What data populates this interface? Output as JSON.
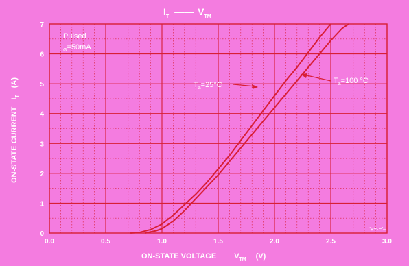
{
  "chart_data": {
    "type": "line",
    "title": {
      "main": "I",
      "main_sub": "T",
      "dash": "——",
      "second": "V",
      "second_sub": "TM"
    },
    "xlabel": {
      "text": "ON-STATE VOLTAGE",
      "symbol": "V",
      "symbol_sub": "TM",
      "unit": "(V)"
    },
    "ylabel": {
      "text": "ON-STATE CURRENT",
      "symbol": "I",
      "symbol_sub": "T",
      "unit": "(A)"
    },
    "xlim": [
      0,
      3.0
    ],
    "ylim": [
      0,
      7
    ],
    "x_tick_labels": [
      "0.0",
      "0.5",
      "1.0",
      "1.5",
      "2.0",
      "2.5",
      "3.0"
    ],
    "y_tick_labels": [
      "0",
      "1",
      "2",
      "3",
      "4",
      "5",
      "6",
      "7"
    ],
    "grid": true,
    "note": {
      "line1": "Pulsed",
      "line2_pre": "I",
      "line2_sub": "G",
      "line2_post": "=50mA"
    },
    "series": [
      {
        "name": "T_a=25°C",
        "label_pre": "T",
        "label_sub": "a",
        "label_post": "=25°C",
        "x": [
          0.85,
          0.95,
          1.0,
          1.1,
          1.2,
          1.3,
          1.4,
          1.5,
          1.6,
          1.7,
          1.8,
          1.9,
          2.0,
          2.1,
          2.2,
          2.3,
          2.4,
          2.5,
          2.6,
          2.66
        ],
        "y": [
          0.0,
          0.08,
          0.15,
          0.4,
          0.75,
          1.15,
          1.55,
          1.95,
          2.4,
          2.85,
          3.3,
          3.75,
          4.2,
          4.65,
          5.1,
          5.55,
          6.0,
          6.45,
          6.85,
          7.0
        ]
      },
      {
        "name": "T_a=100°C",
        "label_pre": "T",
        "label_sub": "a",
        "label_post": "=100 °C",
        "x": [
          0.72,
          0.8,
          0.9,
          1.0,
          1.1,
          1.2,
          1.3,
          1.4,
          1.5,
          1.6,
          1.7,
          1.8,
          1.9,
          2.0,
          2.1,
          2.2,
          2.3,
          2.4,
          2.5
        ],
        "y": [
          0.0,
          0.02,
          0.12,
          0.3,
          0.6,
          0.95,
          1.3,
          1.7,
          2.15,
          2.6,
          3.1,
          3.6,
          4.1,
          4.6,
          5.1,
          5.55,
          6.05,
          6.55,
          7.0
        ]
      }
    ],
    "line_color": "#d81f36",
    "axis_color": "#d81f36",
    "text_color": "#ffffff"
  },
  "watermark": "‘’+=·=’–"
}
